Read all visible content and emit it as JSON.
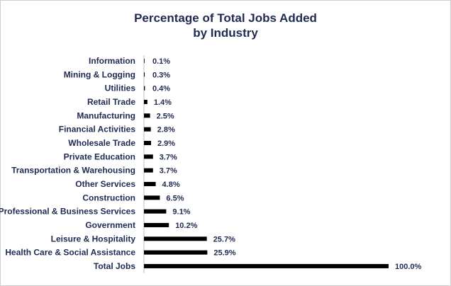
{
  "chart_data": {
    "type": "bar",
    "orientation": "horizontal",
    "title_lines": [
      "Percentage of Total Jobs Added",
      "by Industry"
    ],
    "categories": [
      "Information",
      "Mining & Logging",
      "Utilities",
      "Retail Trade",
      "Manufacturing",
      "Financial Activities",
      "Wholesale Trade",
      "Private Education",
      "Transportation & Warehousing",
      "Other Services",
      "Construction",
      "Professional & Business Services",
      "Government",
      "Leisure & Hospitality",
      "Health Care & Social Assistance",
      "Total Jobs"
    ],
    "values": [
      0.1,
      0.3,
      0.4,
      1.4,
      2.5,
      2.8,
      2.9,
      3.7,
      3.7,
      4.8,
      6.5,
      9.1,
      10.2,
      25.7,
      25.9,
      100.0
    ],
    "value_labels": [
      "0.1%",
      "0.3%",
      "0.4%",
      "1.4%",
      "2.5%",
      "2.8%",
      "2.9%",
      "3.7%",
      "3.7%",
      "4.8%",
      "6.5%",
      "9.1%",
      "10.2%",
      "25.7%",
      "25.9%",
      "100.0%"
    ],
    "xlim": [
      0,
      100
    ],
    "grid": false,
    "legend": "none",
    "colors": {
      "bar": "#000000",
      "text": "#1f2a52",
      "axis": "#bfbfbf"
    }
  }
}
